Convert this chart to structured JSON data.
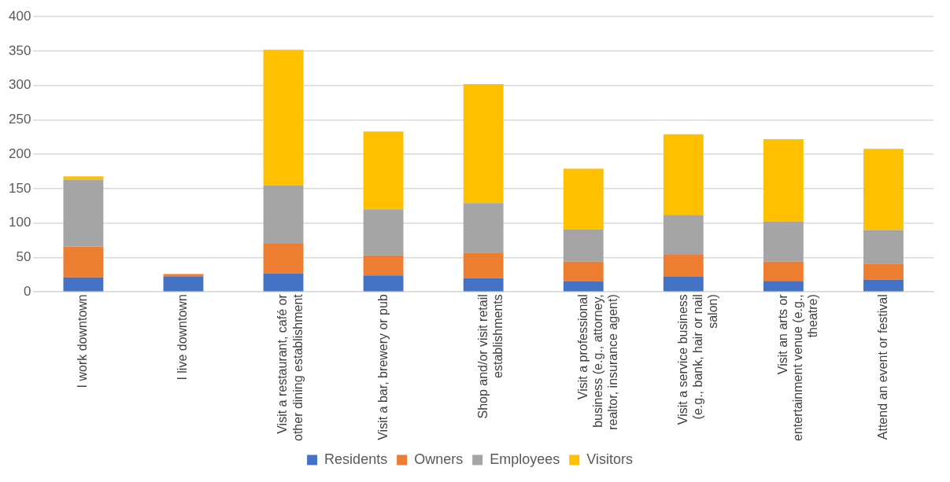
{
  "chart_data": {
    "type": "bar",
    "stacked": true,
    "categories": [
      "I work downtown",
      "I live downtown",
      "Visit a restaurant, café or other dining establishment",
      "Visit a bar, brewery or pub",
      "Shop and/or visit retail establishments",
      "Visit a professional business (e.g., attorney, realtor, insurance agent)",
      "Visit a service business (e.g., bank, hair or nail salon)",
      "Visit an arts or entertainment venue (e.g., theatre)",
      "Attend an event or festival"
    ],
    "series": [
      {
        "name": "Residents",
        "color": "#4472c4",
        "values": [
          21,
          22,
          27,
          24,
          20,
          15,
          22,
          16,
          18
        ]
      },
      {
        "name": "Owners",
        "color": "#ed7d31",
        "values": [
          45,
          4,
          43,
          29,
          37,
          29,
          32,
          28,
          23
        ]
      },
      {
        "name": "Employees",
        "color": "#a5a5a5",
        "values": [
          97,
          0,
          85,
          67,
          72,
          47,
          58,
          58,
          49
        ]
      },
      {
        "name": "Visitors",
        "color": "#ffc000",
        "values": [
          5,
          0,
          197,
          113,
          173,
          88,
          117,
          120,
          118
        ]
      }
    ],
    "ylim": [
      0,
      400
    ],
    "yticks": [
      0,
      50,
      100,
      150,
      200,
      250,
      300,
      350,
      400
    ],
    "grid": "y",
    "legend": "bottom"
  }
}
